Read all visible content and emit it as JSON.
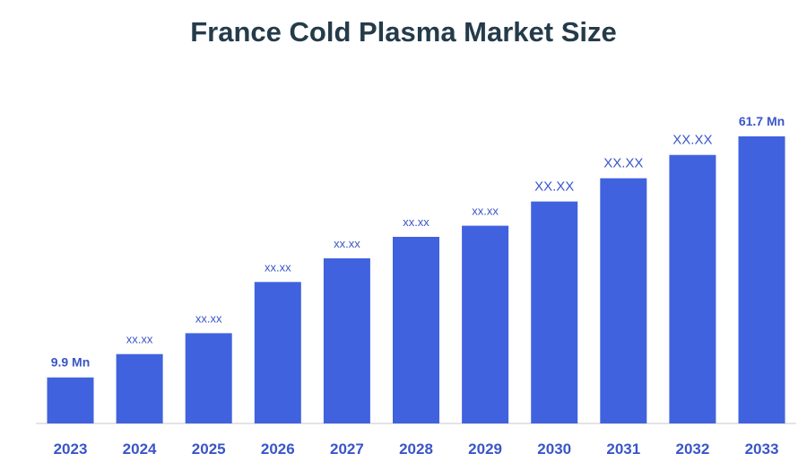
{
  "chart_data": {
    "type": "bar",
    "title": "France Cold Plasma Market Size",
    "categories": [
      "2023",
      "2024",
      "2025",
      "2026",
      "2027",
      "2028",
      "2029",
      "2030",
      "2031",
      "2032",
      "2033"
    ],
    "values": [
      9.9,
      14.9,
      19.4,
      30.4,
      35.5,
      40.1,
      42.5,
      47.7,
      52.7,
      57.7,
      61.7
    ],
    "data_labels": [
      "9.9 Mn",
      "xx.xx",
      "xx.xx",
      "xx.xx",
      "xx.xx",
      "xx.xx",
      "xx.xx",
      "XX.XX",
      "XX.XX",
      "XX.XX",
      "61.7 Mn"
    ],
    "ylim": [
      0,
      64
    ],
    "xlabel": "",
    "ylabel": "",
    "grid": false,
    "legend": "none",
    "colors": {
      "bar": "#4062de",
      "label": "#3a55c8",
      "axis": "#c8c8c8",
      "title": "#243b4a"
    }
  }
}
